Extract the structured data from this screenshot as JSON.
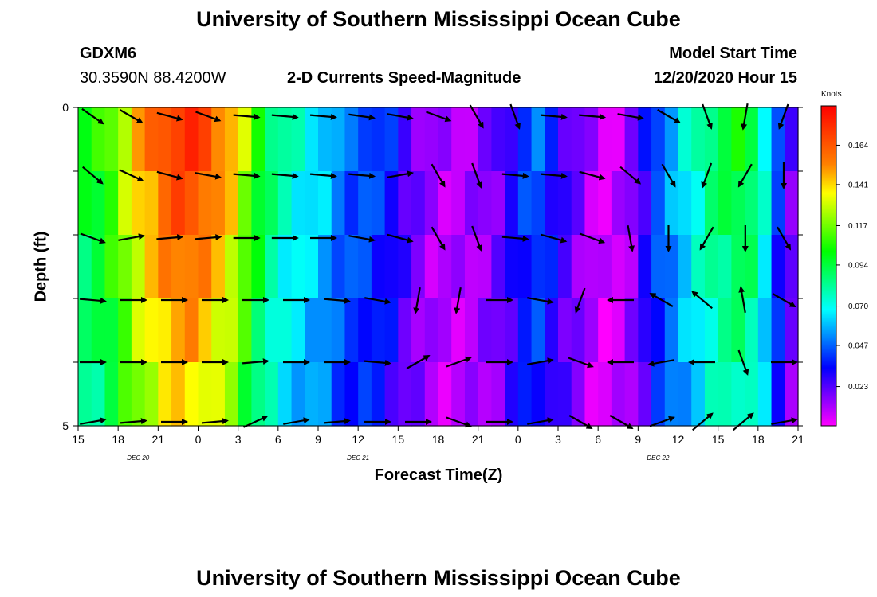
{
  "header": {
    "title": "University of Southern Mississippi Ocean Cube",
    "station_id": "GDXM6",
    "coordinates": "30.3590N 88.4200W",
    "subtitle": "2-D Currents Speed-Magnitude",
    "start_label": "Model Start Time",
    "start_value": "12/20/2020 Hour 15"
  },
  "footer": {
    "title": "University of Southern Mississippi Ocean Cube"
  },
  "chart_data": {
    "type": "heatmap",
    "xlabel": "Forecast Time(Z)",
    "ylabel": "Depth (ft)",
    "x_tick_labels": [
      "15",
      "18",
      "21",
      "0",
      "3",
      "6",
      "9",
      "12",
      "15",
      "18",
      "21",
      "0",
      "3",
      "6",
      "9",
      "12",
      "15",
      "18",
      "21"
    ],
    "date_labels": [
      "DEC 20",
      "DEC 21",
      "DEC 22"
    ],
    "y_tick_labels": [
      "0",
      "5"
    ],
    "ylim": [
      0,
      5
    ],
    "depth_layers": 5,
    "time_columns": 54,
    "colorbar": {
      "unit": "Knots",
      "ticks": [
        "0.164",
        "0.141",
        "0.117",
        "0.094",
        "0.070",
        "0.047",
        "0.023"
      ],
      "range": [
        0,
        0.187
      ],
      "colors": [
        "#ff00ff",
        "#8000ff",
        "#0000ff",
        "#0080ff",
        "#00ffff",
        "#00ff80",
        "#00ff00",
        "#80ff00",
        "#ffff00",
        "#ff8000",
        "#ff4000",
        "#ff0000"
      ]
    },
    "speed_profile": [
      0.095,
      0.1,
      0.11,
      0.125,
      0.14,
      0.15,
      0.16,
      0.165,
      0.165,
      0.16,
      0.15,
      0.14,
      0.12,
      0.1,
      0.085,
      0.075,
      0.07,
      0.065,
      0.06,
      0.05,
      0.045,
      0.045,
      0.04,
      0.035,
      0.025,
      0.018,
      0.012,
      0.01,
      0.01,
      0.012,
      0.015,
      0.02,
      0.03,
      0.04,
      0.045,
      0.035,
      0.025,
      0.018,
      0.01,
      0.005,
      0.008,
      0.015,
      0.03,
      0.045,
      0.055,
      0.065,
      0.075,
      0.085,
      0.09,
      0.095,
      0.09,
      0.07,
      0.04,
      0.02
    ],
    "depth_factor": [
      1.05,
      1.0,
      0.95,
      0.9,
      0.85
    ],
    "vector_angles_deg": [
      [
        35,
        30,
        15,
        20,
        5,
        5,
        5,
        8,
        10,
        20,
        60,
        70,
        5,
        5,
        10,
        30,
        70,
        100,
        110
      ],
      [
        40,
        25,
        15,
        10,
        5,
        5,
        5,
        5,
        -10,
        60,
        70,
        5,
        5,
        15,
        40,
        60,
        110,
        120,
        90
      ],
      [
        20,
        -10,
        -5,
        -5,
        0,
        0,
        0,
        10,
        15,
        60,
        70,
        5,
        15,
        20,
        80,
        90,
        120,
        90,
        60
      ],
      [
        5,
        0,
        0,
        0,
        0,
        0,
        5,
        10,
        100,
        100,
        0,
        10,
        110,
        180,
        210,
        220,
        260,
        30
      ],
      [
        0,
        0,
        0,
        0,
        -5,
        0,
        0,
        5,
        -30,
        -20,
        0,
        -10,
        20,
        180,
        170,
        180,
        70,
        0
      ],
      [
        -10,
        -5,
        0,
        -5,
        -25,
        -10,
        -5,
        0,
        0,
        20,
        0,
        -10,
        30,
        30,
        -20,
        -40,
        -40,
        -10
      ]
    ]
  }
}
